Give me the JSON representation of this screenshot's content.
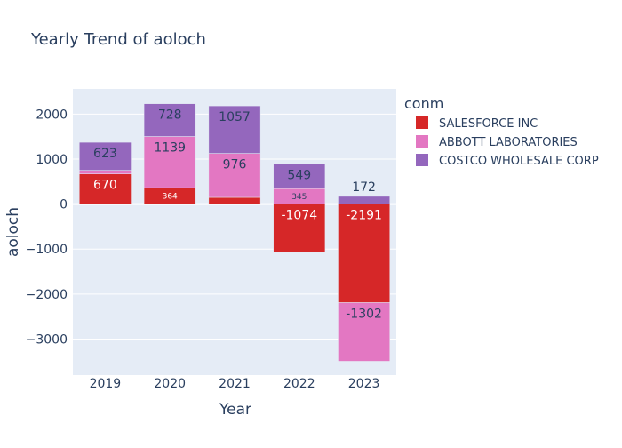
{
  "chart_data": {
    "type": "bar",
    "stacked": true,
    "title": "Yearly Trend of aoloch",
    "xlabel": "Year",
    "ylabel": "aoloch",
    "categories": [
      "2019",
      "2020",
      "2021",
      "2022",
      "2023"
    ],
    "ylim": [
      -3800,
      2560
    ],
    "yticks": [
      -3000,
      -2000,
      -1000,
      0,
      1000,
      2000
    ],
    "ytick_labels": [
      "−3000",
      "−2000",
      "−1000",
      "0",
      "1000",
      "2000"
    ],
    "legend_title": "conm",
    "legend_position": "right",
    "grid": true,
    "series": [
      {
        "name": "SALESFORCE INC",
        "color": "#d62728",
        "values": [
          670,
          364,
          150,
          -1074,
          -2191
        ],
        "labels": [
          "670",
          "364",
          "",
          "-1074",
          "-2191"
        ]
      },
      {
        "name": "ABBOTT LABORATORIES",
        "color": "#e377c2",
        "values": [
          80,
          1139,
          976,
          345,
          -1302
        ],
        "labels": [
          "",
          "1139",
          "976",
          "345",
          "-1302"
        ]
      },
      {
        "name": "COSTCO WHOLESALE CORP",
        "color": "#9467bd",
        "values": [
          623,
          728,
          1057,
          549,
          172
        ],
        "labels": [
          "623",
          "728",
          "1057",
          "549",
          "172"
        ]
      }
    ]
  }
}
